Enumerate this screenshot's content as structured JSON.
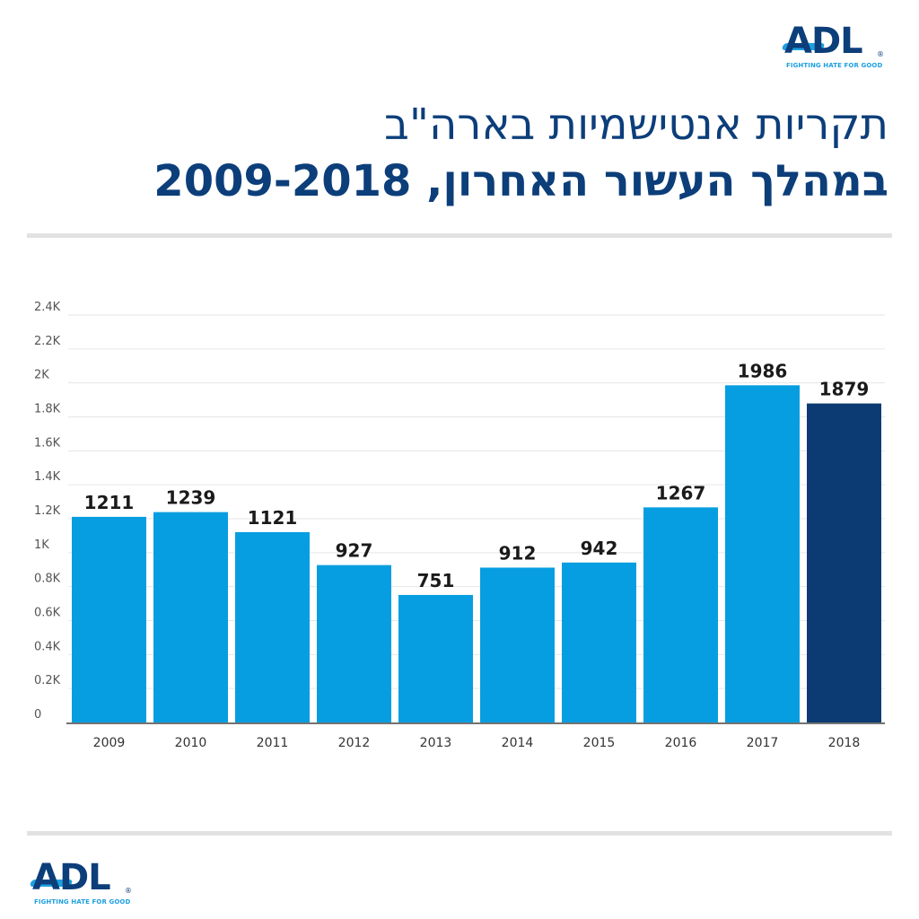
{
  "logo": {
    "text": "ADL",
    "tagline": "FIGHTING HATE FOR GOOD",
    "registered_mark": "®"
  },
  "title": {
    "line1": "תקריות אנטישמיות בארה\"ב",
    "line2": "במהלך העשור האחרון, 2009-2018"
  },
  "chart_data": {
    "type": "bar",
    "title": "תקריות אנטישמיות בארה\"ב במהלך העשור האחרון, 2009-2018",
    "categories": [
      "2009",
      "2010",
      "2011",
      "2012",
      "2013",
      "2014",
      "2015",
      "2016",
      "2017",
      "2018"
    ],
    "values": [
      1211,
      1239,
      1121,
      927,
      751,
      912,
      942,
      1267,
      1986,
      1879
    ],
    "data_labels": [
      "1211",
      "1239",
      "1121",
      "927",
      "751",
      "912",
      "942",
      "1267",
      "1986",
      "1879"
    ],
    "y_ticks": [
      {
        "value": 0,
        "label": "0"
      },
      {
        "value": 200,
        "label": "0.2K"
      },
      {
        "value": 400,
        "label": "0.4K"
      },
      {
        "value": 600,
        "label": "0.6K"
      },
      {
        "value": 800,
        "label": "0.8K"
      },
      {
        "value": 1000,
        "label": "1K"
      },
      {
        "value": 1200,
        "label": "1.2K"
      },
      {
        "value": 1400,
        "label": "1.4K"
      },
      {
        "value": 1600,
        "label": "1.6K"
      },
      {
        "value": 1800,
        "label": "1.8K"
      },
      {
        "value": 2000,
        "label": "2K"
      },
      {
        "value": 2200,
        "label": "2.2K"
      },
      {
        "value": 2400,
        "label": "2.4K"
      }
    ],
    "ylim": [
      0,
      2400
    ],
    "xlabel": "",
    "ylabel": "",
    "grid": true,
    "legend": "none",
    "colors": {
      "default_bar": "#069ee0",
      "highlight_bar": "#0c3b73",
      "highlight_category": "2018",
      "grid": "#e6e6e6",
      "baseline": "#444444"
    }
  }
}
